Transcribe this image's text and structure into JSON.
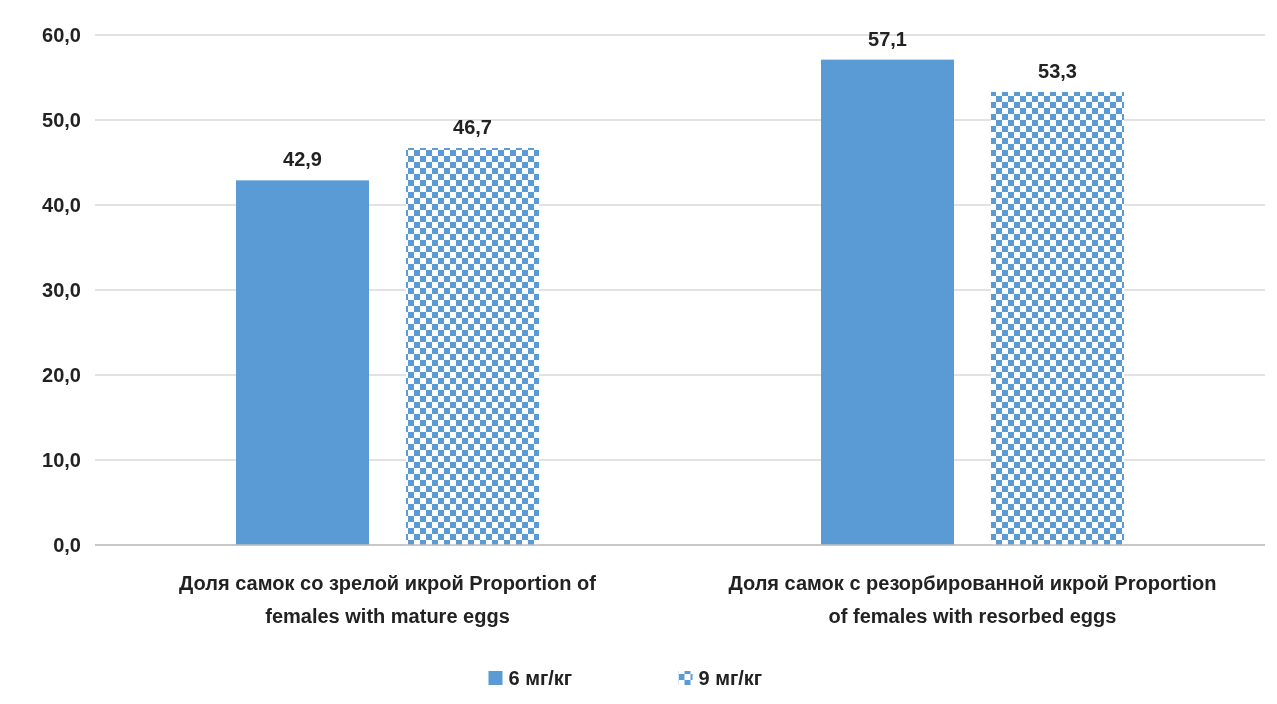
{
  "chart_data": {
    "type": "bar",
    "categories": [
      "Доля самок со зрелой икрой Proportion of females with mature eggs",
      "Доля самок с резорбированной икрой Proportion of females with resorbed eggs"
    ],
    "series": [
      {
        "name": "6 мг/кг",
        "color": "#5b9bd5",
        "values": [
          42.9,
          57.1
        ],
        "value_labels": [
          "42,9",
          "57,1"
        ]
      },
      {
        "name": "9 мг/кг",
        "color": "#5b9bd5",
        "values": [
          46.7,
          53.3
        ],
        "value_labels": [
          "46,7",
          "53,3"
        ]
      }
    ],
    "ylim": [
      0,
      60
    ],
    "yticks": [
      {
        "value": 0,
        "label": "0,0"
      },
      {
        "value": 10,
        "label": "10,0"
      },
      {
        "value": 20,
        "label": "20,0"
      },
      {
        "value": 30,
        "label": "30,0"
      },
      {
        "value": 40,
        "label": "40,0"
      },
      {
        "value": 50,
        "label": "50,0"
      },
      {
        "value": 60,
        "label": "60,0"
      }
    ],
    "grid": "y",
    "legend": "bottom"
  }
}
